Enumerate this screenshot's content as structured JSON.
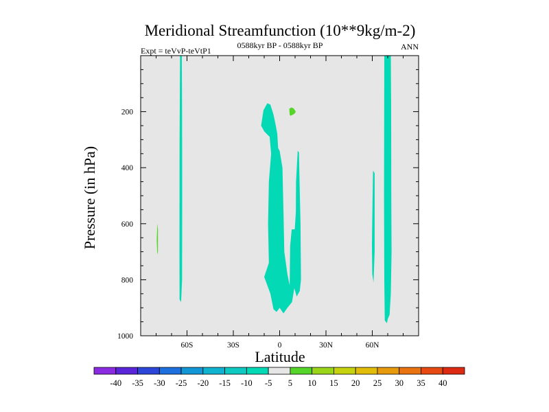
{
  "chart_data": {
    "type": "heatmap",
    "title": "Meridional Streamfunction (10**9kg/m-2)",
    "left_subtitle": "Expt = teVvP-teVtP1",
    "center_subtitle": "0588kyr BP - 0588kyr BP",
    "right_subtitle": "ANN",
    "xlabel": "Latitude",
    "ylabel": "Pressure (in hPa)",
    "xlim": [
      -90,
      90
    ],
    "ylim": [
      1000,
      0
    ],
    "x_ticks": [
      {
        "value": -60,
        "label": "60S"
      },
      {
        "value": -30,
        "label": "30S"
      },
      {
        "value": 0,
        "label": "0"
      },
      {
        "value": 30,
        "label": "30N"
      },
      {
        "value": 60,
        "label": "60N"
      }
    ],
    "y_ticks": [
      {
        "value": 200,
        "label": "200"
      },
      {
        "value": 400,
        "label": "400"
      },
      {
        "value": 600,
        "label": "600"
      },
      {
        "value": 800,
        "label": "800"
      },
      {
        "value": 1000,
        "label": "1000"
      }
    ],
    "background_level": "-5 to 5",
    "background_color": "#e6e6e6",
    "colorbar": {
      "labels": [
        "-40",
        "-35",
        "-30",
        "-25",
        "-20",
        "-15",
        "-10",
        "-5",
        "5",
        "10",
        "15",
        "20",
        "25",
        "30",
        "35",
        "40"
      ],
      "colors": [
        "#8a2be2",
        "#5a24d8",
        "#2c46d9",
        "#1e6fde",
        "#1396d6",
        "#10b3cf",
        "#0ec9c2",
        "#03d9b5",
        "#e6e6e6",
        "#55d52a",
        "#9bd51a",
        "#c6d20e",
        "#e1bd0a",
        "#e69a0c",
        "#e8730f",
        "#e64a12",
        "#dd2a12"
      ]
    },
    "regions": [
      {
        "level": "-10 to -5",
        "color": "#03d9b5",
        "polygon": [
          [
            -64.5,
            0
          ],
          [
            -63.4,
            0
          ],
          [
            -63.2,
            200
          ],
          [
            -63.1,
            500
          ],
          [
            -63.2,
            800
          ],
          [
            -63.8,
            880
          ],
          [
            -64.8,
            870
          ],
          [
            -64.9,
            700
          ],
          [
            -64.8,
            300
          ]
        ]
      },
      {
        "level": "-10 to -5",
        "color": "#03d9b5",
        "polygon": [
          [
            -12,
            250
          ],
          [
            -10.5,
            195
          ],
          [
            -8,
            170
          ],
          [
            -6,
            175
          ],
          [
            -4,
            210
          ],
          [
            -2.5,
            250
          ],
          [
            -1.5,
            280
          ],
          [
            -1,
            330
          ],
          [
            0,
            340
          ],
          [
            1.8,
            400
          ],
          [
            2.5,
            560
          ],
          [
            3,
            700
          ],
          [
            5,
            780
          ],
          [
            6.5,
            820
          ],
          [
            6.8,
            680
          ],
          [
            7.8,
            620
          ],
          [
            9.8,
            620
          ],
          [
            10.5,
            560
          ],
          [
            10.6,
            450
          ],
          [
            11.7,
            340
          ],
          [
            12.5,
            345
          ],
          [
            13,
            480
          ],
          [
            13.5,
            600
          ],
          [
            13.8,
            800
          ],
          [
            13,
            840
          ],
          [
            11,
            860
          ],
          [
            9.5,
            830
          ],
          [
            8,
            880
          ],
          [
            5,
            900
          ],
          [
            2.5,
            920
          ],
          [
            0,
            900
          ],
          [
            -2,
            915
          ],
          [
            -4,
            905
          ],
          [
            -6,
            850
          ],
          [
            -10,
            790
          ],
          [
            -7,
            740
          ],
          [
            -7.5,
            600
          ],
          [
            -7,
            450
          ],
          [
            -5.5,
            350
          ],
          [
            -6.5,
            290
          ],
          [
            -10,
            270
          ]
        ]
      },
      {
        "level": "5 to 10",
        "color": "#55d52a",
        "polygon": [
          [
            6.2,
            190
          ],
          [
            7.5,
            185
          ],
          [
            9,
            188
          ],
          [
            10.5,
            200
          ],
          [
            9.5,
            208
          ],
          [
            7,
            215
          ],
          [
            6.5,
            210
          ]
        ]
      },
      {
        "level": "5 to 10",
        "color": "#55d52a",
        "polygon": [
          [
            -79.2,
            600
          ],
          [
            -78.8,
            620
          ],
          [
            -78.8,
            700
          ],
          [
            -79.2,
            710
          ],
          [
            -79.6,
            660
          ]
        ]
      },
      {
        "level": "-10 to -5",
        "color": "#03d9b5",
        "polygon": [
          [
            60,
            580
          ],
          [
            60.5,
            410
          ],
          [
            61.5,
            420
          ],
          [
            61.5,
            700
          ],
          [
            60.8,
            810
          ],
          [
            60,
            780
          ],
          [
            59.8,
            680
          ]
        ]
      },
      {
        "level": "-10 to -5",
        "color": "#03d9b5",
        "polygon": [
          [
            67.8,
            0
          ],
          [
            72,
            0
          ],
          [
            72.2,
            200
          ],
          [
            72.3,
            500
          ],
          [
            72.5,
            700
          ],
          [
            72,
            850
          ],
          [
            71.2,
            925
          ],
          [
            70,
            940
          ],
          [
            69.5,
            955
          ],
          [
            68.1,
            945
          ],
          [
            67.8,
            800
          ],
          [
            67.6,
            500
          ]
        ]
      }
    ]
  }
}
